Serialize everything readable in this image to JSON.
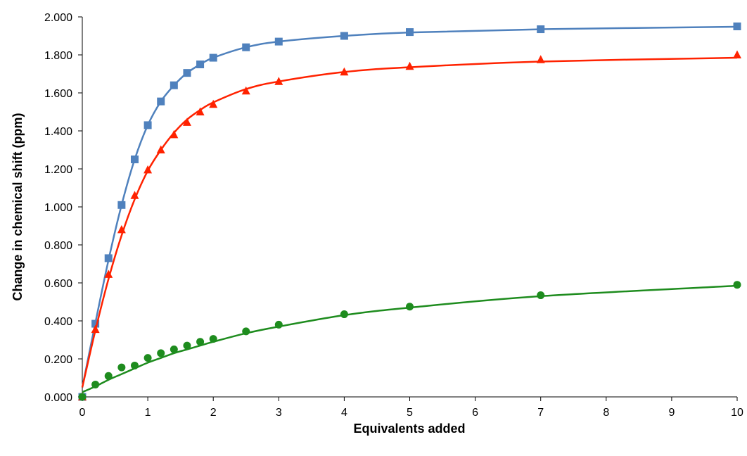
{
  "chart_data": {
    "type": "scatter",
    "title": "",
    "xlabel": "Equivalents added",
    "ylabel": "Change in chemical shift (ppm)",
    "xlim": [
      0,
      10
    ],
    "ylim": [
      0,
      2.0
    ],
    "x_ticks": [
      0,
      1,
      2,
      3,
      4,
      5,
      6,
      7,
      8,
      9,
      10
    ],
    "x_tick_labels": [
      "0",
      "1",
      "2",
      "3",
      "4",
      "5",
      "6",
      "7",
      "8",
      "9",
      "10"
    ],
    "y_ticks": [
      0,
      0.2,
      0.4,
      0.6,
      0.8,
      1.0,
      1.2,
      1.4,
      1.6,
      1.8,
      2.0
    ],
    "y_tick_labels": [
      "0.000",
      "0.200",
      "0.400",
      "0.600",
      "0.800",
      "1.000",
      "1.200",
      "1.400",
      "1.600",
      "1.800",
      "2.000"
    ],
    "grid": false,
    "legend": "none",
    "series": [
      {
        "marker": "square",
        "color": "#4F81BD",
        "points": [
          [
            0,
            0
          ],
          [
            0.2,
            0.385
          ],
          [
            0.4,
            0.73
          ],
          [
            0.6,
            1.01
          ],
          [
            0.8,
            1.25
          ],
          [
            1.0,
            1.43
          ],
          [
            1.2,
            1.555
          ],
          [
            1.4,
            1.64
          ],
          [
            1.6,
            1.705
          ],
          [
            1.8,
            1.75
          ],
          [
            2.0,
            1.785
          ],
          [
            2.5,
            1.84
          ],
          [
            3,
            1.87
          ],
          [
            4,
            1.9
          ],
          [
            5,
            1.92
          ],
          [
            7,
            1.935
          ],
          [
            10,
            1.95
          ]
        ],
        "fit": [
          [
            0,
            0.05
          ],
          [
            0.2,
            0.39
          ],
          [
            0.4,
            0.72
          ],
          [
            0.6,
            1.01
          ],
          [
            0.8,
            1.25
          ],
          [
            1.0,
            1.43
          ],
          [
            1.2,
            1.555
          ],
          [
            1.4,
            1.64
          ],
          [
            1.6,
            1.705
          ],
          [
            1.8,
            1.75
          ],
          [
            2.0,
            1.785
          ],
          [
            2.5,
            1.84
          ],
          [
            3,
            1.87
          ],
          [
            4,
            1.9
          ],
          [
            5,
            1.918
          ],
          [
            7,
            1.935
          ],
          [
            10,
            1.948
          ]
        ]
      },
      {
        "marker": "triangle",
        "color": "#FF2200",
        "points": [
          [
            0,
            0
          ],
          [
            0.2,
            0.355
          ],
          [
            0.4,
            0.645
          ],
          [
            0.6,
            0.88
          ],
          [
            0.8,
            1.06
          ],
          [
            1.0,
            1.195
          ],
          [
            1.2,
            1.3
          ],
          [
            1.4,
            1.38
          ],
          [
            1.6,
            1.445
          ],
          [
            1.8,
            1.5
          ],
          [
            2.0,
            1.54
          ],
          [
            2.5,
            1.61
          ],
          [
            3,
            1.66
          ],
          [
            4,
            1.71
          ],
          [
            5,
            1.74
          ],
          [
            7,
            1.775
          ],
          [
            10,
            1.8
          ]
        ],
        "fit": [
          [
            0,
            0.05
          ],
          [
            0.2,
            0.35
          ],
          [
            0.4,
            0.62
          ],
          [
            0.6,
            0.85
          ],
          [
            0.8,
            1.04
          ],
          [
            1.0,
            1.19
          ],
          [
            1.2,
            1.3
          ],
          [
            1.4,
            1.39
          ],
          [
            1.6,
            1.46
          ],
          [
            1.8,
            1.51
          ],
          [
            2.0,
            1.55
          ],
          [
            2.5,
            1.62
          ],
          [
            3,
            1.66
          ],
          [
            4,
            1.71
          ],
          [
            5,
            1.735
          ],
          [
            7,
            1.765
          ],
          [
            10,
            1.785
          ]
        ]
      },
      {
        "marker": "circle",
        "color": "#1E8C1E",
        "points": [
          [
            0,
            0
          ],
          [
            0.2,
            0.065
          ],
          [
            0.4,
            0.11
          ],
          [
            0.6,
            0.155
          ],
          [
            0.8,
            0.165
          ],
          [
            1.0,
            0.205
          ],
          [
            1.2,
            0.23
          ],
          [
            1.4,
            0.25
          ],
          [
            1.6,
            0.27
          ],
          [
            1.8,
            0.29
          ],
          [
            2.0,
            0.305
          ],
          [
            2.5,
            0.345
          ],
          [
            3,
            0.38
          ],
          [
            4,
            0.435
          ],
          [
            5,
            0.475
          ],
          [
            7,
            0.535
          ],
          [
            10,
            0.59
          ]
        ],
        "fit": [
          [
            0,
            0.025
          ],
          [
            0.2,
            0.055
          ],
          [
            0.4,
            0.09
          ],
          [
            0.6,
            0.12
          ],
          [
            0.8,
            0.15
          ],
          [
            1.0,
            0.18
          ],
          [
            1.2,
            0.205
          ],
          [
            1.4,
            0.23
          ],
          [
            1.6,
            0.25
          ],
          [
            1.8,
            0.27
          ],
          [
            2.0,
            0.29
          ],
          [
            2.5,
            0.335
          ],
          [
            3,
            0.37
          ],
          [
            4,
            0.43
          ],
          [
            5,
            0.47
          ],
          [
            7,
            0.53
          ],
          [
            10,
            0.585
          ]
        ]
      }
    ]
  }
}
